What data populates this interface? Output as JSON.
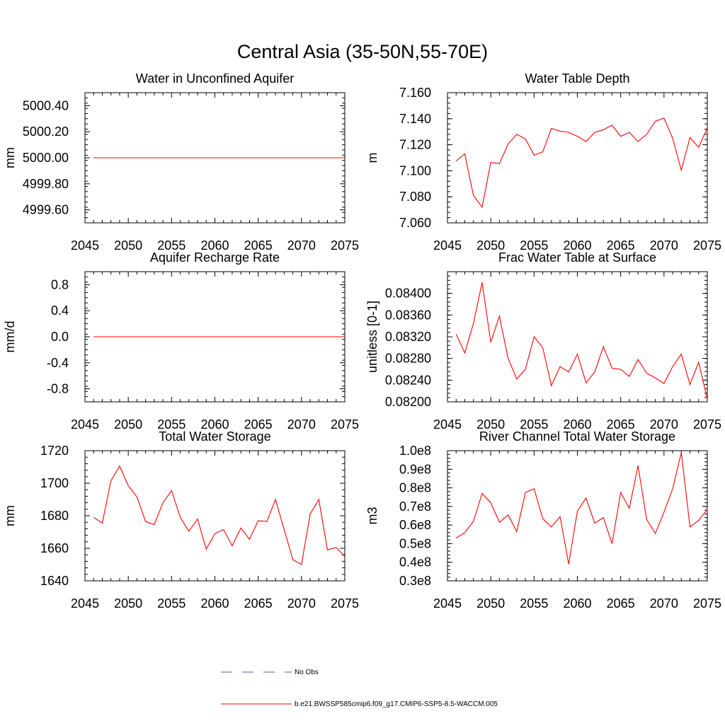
{
  "page": {
    "title": "Central Asia (35-50N,55-70E)"
  },
  "legend": {
    "items": [
      {
        "label": "No Obs",
        "color": "#5a5ab4",
        "dash": true
      },
      {
        "label": "b.e21.BWSSP585cmip6.f09_g17.CMIP6-SSP5-8.5-WACCM.005",
        "color": "#ff0000",
        "dash": false
      }
    ]
  },
  "chart_data": [
    {
      "type": "line",
      "title": "Water in Unconfined Aquifer",
      "xlabel": "",
      "ylabel": "mm",
      "xlim": [
        2045,
        2075
      ],
      "ylim": [
        4999.5,
        5000.5
      ],
      "xticks": [
        2045,
        2050,
        2055,
        2060,
        2065,
        2070,
        2075
      ],
      "yticks": [
        4999.6,
        4999.8,
        5000.0,
        5000.2,
        5000.4
      ],
      "ytick_labels": [
        "4999.60",
        "4999.80",
        "5000.00",
        "5000.20",
        "5000.40"
      ],
      "grid": false,
      "x": [
        2046,
        2047,
        2048,
        2049,
        2050,
        2051,
        2052,
        2053,
        2054,
        2055,
        2056,
        2057,
        2058,
        2059,
        2060,
        2061,
        2062,
        2063,
        2064,
        2065,
        2066,
        2067,
        2068,
        2069,
        2070,
        2071,
        2072,
        2073,
        2074,
        2075
      ],
      "series": [
        {
          "color": "#ff0000",
          "values": [
            5000,
            5000,
            5000,
            5000,
            5000,
            5000,
            5000,
            5000,
            5000,
            5000,
            5000,
            5000,
            5000,
            5000,
            5000,
            5000,
            5000,
            5000,
            5000,
            5000,
            5000,
            5000,
            5000,
            5000,
            5000,
            5000,
            5000,
            5000,
            5000,
            5000
          ]
        }
      ]
    },
    {
      "type": "line",
      "title": "Water Table Depth",
      "xlabel": "",
      "ylabel": "m",
      "xlim": [
        2045,
        2075
      ],
      "ylim": [
        7.06,
        7.16
      ],
      "xticks": [
        2045,
        2050,
        2055,
        2060,
        2065,
        2070,
        2075
      ],
      "yticks": [
        7.06,
        7.08,
        7.1,
        7.12,
        7.14,
        7.16
      ],
      "ytick_labels": [
        "7.060",
        "7.080",
        "7.100",
        "7.120",
        "7.140",
        "7.160"
      ],
      "grid": false,
      "x": [
        2046,
        2047,
        2048,
        2049,
        2050,
        2051,
        2052,
        2053,
        2054,
        2055,
        2056,
        2057,
        2058,
        2059,
        2060,
        2061,
        2062,
        2063,
        2064,
        2065,
        2066,
        2067,
        2068,
        2069,
        2070,
        2071,
        2072,
        2073,
        2074,
        2075
      ],
      "series": [
        {
          "color": "#ff0000",
          "values": [
            7.1075,
            7.113,
            7.081,
            7.072,
            7.1065,
            7.1055,
            7.1205,
            7.128,
            7.1245,
            7.112,
            7.1145,
            7.1325,
            7.1305,
            7.1295,
            7.1265,
            7.1225,
            7.1295,
            7.1315,
            7.135,
            7.1265,
            7.1295,
            7.1225,
            7.128,
            7.138,
            7.1405,
            7.125,
            7.1005,
            7.1255,
            7.118,
            7.133
          ]
        }
      ]
    },
    {
      "type": "line",
      "title": "Aquifer Recharge Rate",
      "xlabel": "",
      "ylabel": "mm/d",
      "xlim": [
        2045,
        2075
      ],
      "ylim": [
        -1.0,
        1.0
      ],
      "xticks": [
        2045,
        2050,
        2055,
        2060,
        2065,
        2070,
        2075
      ],
      "yticks": [
        -0.8,
        -0.4,
        0.0,
        0.4,
        0.8
      ],
      "ytick_labels": [
        "-0.8",
        "-0.4",
        "0.0",
        "0.4",
        "0.8"
      ],
      "grid": false,
      "x": [
        2046,
        2047,
        2048,
        2049,
        2050,
        2051,
        2052,
        2053,
        2054,
        2055,
        2056,
        2057,
        2058,
        2059,
        2060,
        2061,
        2062,
        2063,
        2064,
        2065,
        2066,
        2067,
        2068,
        2069,
        2070,
        2071,
        2072,
        2073,
        2074,
        2075
      ],
      "series": [
        {
          "color": "#ff0000",
          "values": [
            0,
            0,
            0,
            0,
            0,
            0,
            0,
            0,
            0,
            0,
            0,
            0,
            0,
            0,
            0,
            0,
            0,
            0,
            0,
            0,
            0,
            0,
            0,
            0,
            0,
            0,
            0,
            0,
            0,
            0
          ]
        }
      ]
    },
    {
      "type": "line",
      "title": "Frac Water Table at Surface",
      "xlabel": "",
      "ylabel": "unitless [0-1]",
      "xlim": [
        2045,
        2075
      ],
      "ylim": [
        0.082,
        0.0844
      ],
      "xticks": [
        2045,
        2050,
        2055,
        2060,
        2065,
        2070,
        2075
      ],
      "yticks": [
        0.082,
        0.0824,
        0.0828,
        0.0832,
        0.0836,
        0.084
      ],
      "ytick_labels": [
        "0.08200",
        "0.08240",
        "0.08280",
        "0.08320",
        "0.08360",
        "0.08400"
      ],
      "grid": false,
      "x": [
        2046,
        2047,
        2048,
        2049,
        2050,
        2051,
        2052,
        2053,
        2054,
        2055,
        2056,
        2057,
        2058,
        2059,
        2060,
        2061,
        2062,
        2063,
        2064,
        2065,
        2066,
        2067,
        2068,
        2069,
        2070,
        2071,
        2072,
        2073,
        2074,
        2075
      ],
      "series": [
        {
          "color": "#ff0000",
          "values": [
            0.08325,
            0.0829,
            0.08345,
            0.0842,
            0.0831,
            0.08358,
            0.0828,
            0.08242,
            0.0826,
            0.0832,
            0.083,
            0.0823,
            0.08265,
            0.08255,
            0.08288,
            0.08235,
            0.08255,
            0.08302,
            0.08262,
            0.0826,
            0.08247,
            0.08278,
            0.08253,
            0.08244,
            0.08234,
            0.08265,
            0.08288,
            0.08232,
            0.08273,
            0.08205
          ]
        }
      ]
    },
    {
      "type": "line",
      "title": "Total Water Storage",
      "xlabel": "",
      "ylabel": "mm",
      "xlim": [
        2045,
        2075
      ],
      "ylim": [
        1640,
        1720
      ],
      "xticks": [
        2045,
        2050,
        2055,
        2060,
        2065,
        2070,
        2075
      ],
      "yticks": [
        1640,
        1660,
        1680,
        1700,
        1720
      ],
      "ytick_labels": [
        "1640",
        "1660",
        "1680",
        "1700",
        "1720"
      ],
      "grid": false,
      "x": [
        2046,
        2047,
        2048,
        2049,
        2050,
        2051,
        2052,
        2053,
        2054,
        2055,
        2056,
        2057,
        2058,
        2059,
        2060,
        2061,
        2062,
        2063,
        2064,
        2065,
        2066,
        2067,
        2068,
        2069,
        2070,
        2071,
        2072,
        2073,
        2074,
        2075
      ],
      "series": [
        {
          "color": "#ff0000",
          "values": [
            1679,
            1675.5,
            1701.5,
            1710.5,
            1698.5,
            1691.5,
            1676.5,
            1674.5,
            1688,
            1695.5,
            1679,
            1670.5,
            1678,
            1659.5,
            1669,
            1671.5,
            1661.5,
            1672.5,
            1665.5,
            1677,
            1676.5,
            1690,
            1671.5,
            1653,
            1650,
            1681,
            1690,
            1659,
            1660.5,
            1655
          ]
        }
      ]
    },
    {
      "type": "line",
      "title": "River Channel Total Water Storage",
      "xlabel": "",
      "ylabel": "m3",
      "xlim": [
        2045,
        2075
      ],
      "ylim": [
        30000000,
        100000000
      ],
      "xticks": [
        2045,
        2050,
        2055,
        2060,
        2065,
        2070,
        2075
      ],
      "yticks": [
        30000000,
        40000000,
        50000000,
        60000000,
        70000000,
        80000000,
        90000000,
        100000000
      ],
      "ytick_labels": [
        "0.3e8",
        "0.4e8",
        "0.5e8",
        "0.6e8",
        "0.7e8",
        "0.8e8",
        "0.9e8",
        "1.0e8"
      ],
      "grid": false,
      "x": [
        2046,
        2047,
        2048,
        2049,
        2050,
        2051,
        2052,
        2053,
        2054,
        2055,
        2056,
        2057,
        2058,
        2059,
        2060,
        2061,
        2062,
        2063,
        2064,
        2065,
        2066,
        2067,
        2068,
        2069,
        2070,
        2071,
        2072,
        2073,
        2074,
        2075
      ],
      "series": [
        {
          "color": "#ff0000",
          "values": [
            53000000,
            56000000,
            62000000,
            77000000,
            72000000,
            61500000,
            65500000,
            56500000,
            77500000,
            79500000,
            63500000,
            59000000,
            64500000,
            39000000,
            67500000,
            74500000,
            61000000,
            64000000,
            50000000,
            77500000,
            69000000,
            92000000,
            63000000,
            55500000,
            67000000,
            79500000,
            99000000,
            59000000,
            62500000,
            68500000
          ]
        }
      ]
    }
  ]
}
